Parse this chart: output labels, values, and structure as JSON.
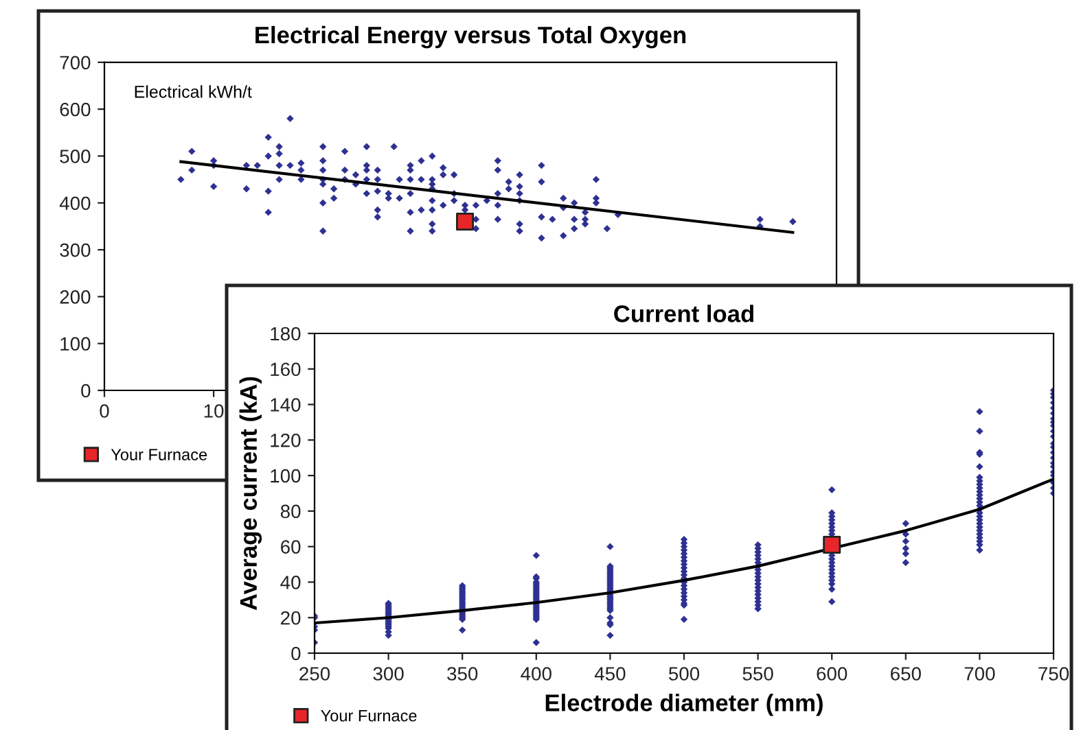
{
  "chart_data": [
    {
      "type": "scatter",
      "title": "Electrical Energy versus Total Oxygen",
      "ylabel": "Electrical kWh/t",
      "xlim": [
        0,
        67
      ],
      "ylim": [
        0,
        700
      ],
      "xticks": [
        0,
        10
      ],
      "yticks": [
        0,
        100,
        200,
        300,
        400,
        500,
        600,
        700
      ],
      "grid": false,
      "legend": "bottom left",
      "series": [
        {
          "type": "scatter",
          "marker": "diamond",
          "color": "#2e3192",
          "x": [
            7,
            8,
            8,
            10,
            10,
            10,
            13,
            13,
            14,
            15,
            15,
            15,
            15,
            16,
            16,
            16,
            16,
            17,
            17,
            18,
            18,
            18,
            20,
            20,
            20,
            20,
            20,
            20,
            20,
            21,
            21,
            22,
            22,
            22,
            23,
            23,
            24,
            24,
            24,
            24,
            24,
            25,
            25,
            25,
            25,
            25,
            26,
            26,
            26.5,
            27,
            27,
            28,
            28,
            28,
            28,
            28,
            28,
            29,
            29,
            29,
            30,
            30,
            30,
            30,
            30,
            30,
            30,
            30,
            31,
            31,
            31,
            32,
            32,
            32,
            33,
            33,
            34,
            34,
            34,
            35,
            36,
            36,
            36,
            36,
            36,
            37,
            37,
            38,
            38,
            38,
            38,
            38,
            38,
            40,
            40,
            40,
            40,
            41,
            42,
            42,
            42,
            43,
            43,
            43,
            44,
            44,
            44,
            45,
            45,
            45,
            46,
            47,
            60,
            60,
            63
          ],
          "values": [
            450,
            510,
            470,
            435,
            490,
            480,
            430,
            480,
            480,
            540,
            500,
            380,
            425,
            520,
            505,
            480,
            450,
            580,
            480,
            485,
            470,
            450,
            520,
            490,
            470,
            450,
            440,
            400,
            340,
            430,
            410,
            510,
            470,
            450,
            460,
            440,
            520,
            480,
            470,
            450,
            420,
            470,
            450,
            425,
            385,
            370,
            420,
            410,
            520,
            450,
            410,
            480,
            470,
            450,
            420,
            380,
            340,
            490,
            450,
            385,
            500,
            450,
            440,
            430,
            405,
            385,
            355,
            340,
            475,
            460,
            395,
            460,
            420,
            405,
            395,
            385,
            395,
            365,
            345,
            405,
            490,
            470,
            420,
            395,
            365,
            445,
            430,
            460,
            435,
            420,
            405,
            355,
            340,
            480,
            445,
            370,
            325,
            365,
            410,
            390,
            330,
            400,
            365,
            345,
            380,
            365,
            355,
            450,
            410,
            400,
            345,
            375,
            365,
            350,
            360
          ]
        },
        {
          "type": "line",
          "marker": "none",
          "color": "#000000",
          "x": [
            7,
            63
          ],
          "values": [
            488,
            337
          ]
        },
        {
          "type": "scatter",
          "name": "Your Furnace",
          "marker": "square",
          "color": "#e8262a",
          "x": [
            33
          ],
          "values": [
            360
          ]
        }
      ]
    },
    {
      "type": "scatter",
      "title": "Current load",
      "xlabel": "Electrode diameter (mm)",
      "ylabel": "Average current (kA)",
      "xlim": [
        250,
        750
      ],
      "ylim": [
        0,
        180
      ],
      "xticks": [
        250,
        300,
        350,
        400,
        450,
        500,
        550,
        600,
        650,
        700,
        750
      ],
      "yticks": [
        0,
        20,
        40,
        60,
        80,
        100,
        120,
        140,
        160,
        180
      ],
      "grid": false,
      "legend": "bottom left",
      "series": [
        {
          "type": "scatter",
          "marker": "diamond",
          "color": "#2e3192",
          "x": [
            250,
            250,
            250,
            250,
            250,
            300,
            300,
            300,
            300,
            300,
            300,
            300,
            300,
            300,
            300,
            300,
            300,
            300,
            300,
            300,
            300,
            350,
            350,
            350,
            350,
            350,
            350,
            350,
            350,
            350,
            350,
            350,
            350,
            350,
            350,
            350,
            350,
            350,
            350,
            350,
            350,
            400,
            400,
            400,
            400,
            400,
            400,
            400,
            400,
            400,
            400,
            400,
            400,
            400,
            400,
            400,
            400,
            400,
            400,
            400,
            400,
            400,
            400,
            400,
            400,
            400,
            400,
            450,
            450,
            450,
            450,
            450,
            450,
            450,
            450,
            450,
            450,
            450,
            450,
            450,
            450,
            450,
            450,
            450,
            450,
            450,
            450,
            450,
            450,
            450,
            450,
            450,
            450,
            450,
            450,
            450,
            450,
            500,
            500,
            500,
            500,
            500,
            500,
            500,
            500,
            500,
            500,
            500,
            500,
            500,
            500,
            500,
            500,
            500,
            500,
            500,
            500,
            500,
            550,
            550,
            550,
            550,
            550,
            550,
            550,
            550,
            550,
            550,
            550,
            550,
            550,
            550,
            550,
            550,
            550,
            550,
            550,
            600,
            600,
            600,
            600,
            600,
            600,
            600,
            600,
            600,
            600,
            600,
            600,
            600,
            600,
            600,
            600,
            600,
            600,
            600,
            650,
            650,
            650,
            650,
            650,
            650,
            700,
            700,
            700,
            700,
            700,
            700,
            700,
            700,
            700,
            700,
            700,
            700,
            700,
            700,
            700,
            700,
            700,
            700,
            700,
            700,
            700,
            700,
            700,
            700,
            700,
            700,
            750,
            750,
            750,
            750,
            750,
            750,
            750,
            750,
            750,
            750,
            750,
            750,
            750,
            750,
            750,
            750,
            750,
            750,
            750,
            750,
            750,
            750
          ],
          "values": [
            21,
            20,
            15,
            13,
            6,
            28,
            27,
            26,
            25,
            24,
            23,
            22,
            21,
            19,
            18,
            17,
            16,
            15,
            14,
            12,
            10,
            38,
            37,
            36,
            35,
            34,
            33,
            32,
            31,
            30,
            29,
            28,
            27,
            26,
            25,
            23,
            22,
            21,
            20,
            19,
            13,
            55,
            43,
            42,
            40,
            39,
            38,
            37,
            36,
            35,
            34,
            33,
            32,
            31,
            30,
            29,
            28,
            27,
            26,
            25,
            24,
            23,
            22,
            21,
            20,
            19,
            6,
            60,
            49,
            48,
            47,
            46,
            45,
            44,
            43,
            42,
            41,
            40,
            39,
            38,
            37,
            36,
            35,
            33,
            32,
            31,
            30,
            29,
            28,
            27,
            26,
            25,
            24,
            20,
            17,
            16,
            10,
            64,
            62,
            60,
            58,
            56,
            54,
            52,
            50,
            48,
            46,
            44,
            42,
            40,
            38,
            36,
            34,
            32,
            30,
            28,
            27,
            19,
            61,
            59,
            57,
            55,
            53,
            51,
            49,
            47,
            45,
            43,
            41,
            39,
            37,
            35,
            33,
            31,
            29,
            27,
            25,
            92,
            79,
            77,
            75,
            73,
            71,
            69,
            67,
            55,
            53,
            51,
            49,
            47,
            45,
            43,
            41,
            39,
            36,
            29,
            73,
            67,
            63,
            59,
            56,
            51,
            136,
            125,
            113,
            112,
            105,
            99,
            97,
            95,
            93,
            91,
            89,
            87,
            85,
            83,
            81,
            79,
            77,
            75,
            73,
            71,
            69,
            67,
            65,
            63,
            61,
            58,
            148,
            146,
            144,
            141,
            138,
            135,
            132,
            130,
            128,
            125,
            122,
            118,
            116,
            113,
            110,
            107,
            105,
            102,
            100,
            96,
            93,
            90
          ]
        },
        {
          "type": "line",
          "marker": "none",
          "color": "#000000",
          "x": [
            250,
            300,
            350,
            400,
            450,
            500,
            550,
            600,
            650,
            700,
            750
          ],
          "values": [
            17,
            20,
            24,
            28.5,
            34,
            41,
            49,
            59,
            69,
            81,
            98
          ]
        },
        {
          "type": "scatter",
          "name": "Your Furnace",
          "marker": "square",
          "color": "#e8262a",
          "x": [
            600
          ],
          "values": [
            61
          ]
        }
      ]
    }
  ]
}
